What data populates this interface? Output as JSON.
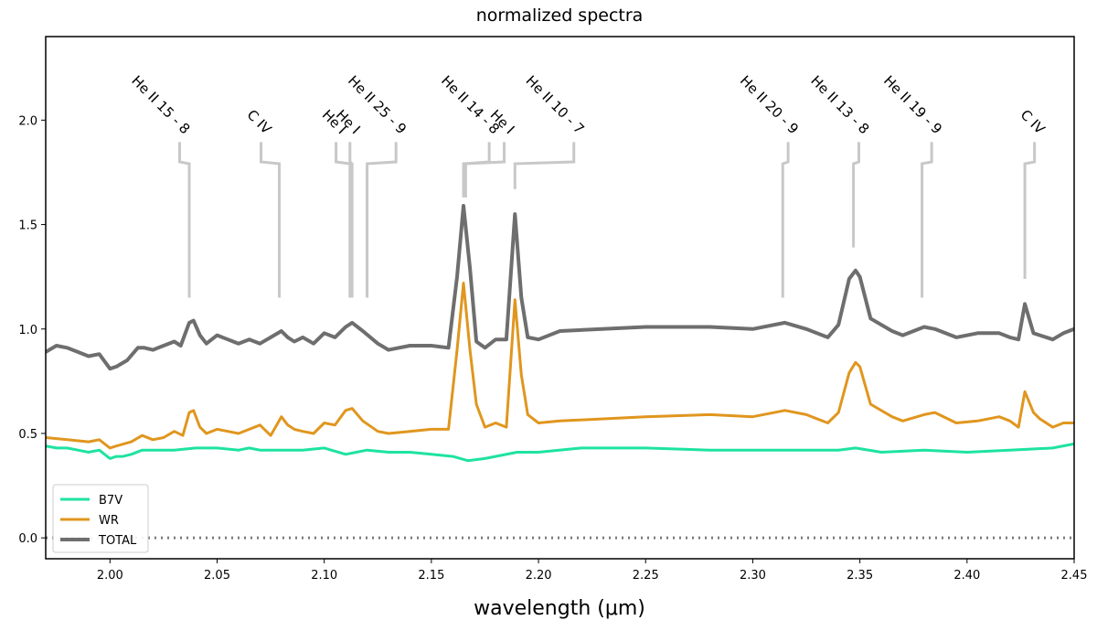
{
  "chart_data": {
    "type": "line",
    "title": "normalized spectra",
    "xlabel": "wavelength (μm)",
    "ylabel": "",
    "xlim": [
      1.97,
      2.45
    ],
    "ylim": [
      -0.1,
      2.4
    ],
    "xticks": [
      2.0,
      2.05,
      2.1,
      2.15,
      2.2,
      2.25,
      2.3,
      2.35,
      2.4,
      2.45
    ],
    "xtick_labels": [
      "2.00",
      "2.05",
      "2.10",
      "2.15",
      "2.20",
      "2.25",
      "2.30",
      "2.35",
      "2.40",
      "2.45"
    ],
    "yticks": [
      0.0,
      0.5,
      1.0,
      1.5,
      2.0
    ],
    "ytick_labels": [
      "0.0",
      "0.5",
      "1.0",
      "1.5",
      "2.0"
    ],
    "grid": false,
    "legend_position": "lower-left",
    "zero_line": {
      "y": 0.0,
      "style": "dotted",
      "color": "#7a7a7a"
    },
    "series": [
      {
        "name": "B7V",
        "color": "#1ee3a0",
        "x": [
          1.97,
          1.975,
          1.98,
          1.985,
          1.99,
          1.995,
          2.0,
          2.003,
          2.006,
          2.01,
          2.015,
          2.02,
          2.03,
          2.04,
          2.05,
          2.06,
          2.065,
          2.07,
          2.08,
          2.09,
          2.1,
          2.11,
          2.115,
          2.12,
          2.13,
          2.14,
          2.15,
          2.16,
          2.167,
          2.175,
          2.19,
          2.2,
          2.22,
          2.25,
          2.28,
          2.3,
          2.32,
          2.34,
          2.348,
          2.36,
          2.38,
          2.4,
          2.42,
          2.44,
          2.45
        ],
        "values": [
          0.44,
          0.43,
          0.43,
          0.42,
          0.41,
          0.42,
          0.38,
          0.39,
          0.39,
          0.4,
          0.42,
          0.42,
          0.42,
          0.43,
          0.43,
          0.42,
          0.43,
          0.42,
          0.42,
          0.42,
          0.43,
          0.4,
          0.41,
          0.42,
          0.41,
          0.41,
          0.4,
          0.39,
          0.37,
          0.38,
          0.41,
          0.41,
          0.43,
          0.43,
          0.42,
          0.42,
          0.42,
          0.42,
          0.43,
          0.41,
          0.42,
          0.41,
          0.42,
          0.43,
          0.45
        ]
      },
      {
        "name": "WR",
        "color": "#e0961e",
        "x": [
          1.97,
          1.98,
          1.99,
          1.995,
          2.0,
          2.003,
          2.01,
          2.015,
          2.02,
          2.025,
          2.03,
          2.034,
          2.037,
          2.039,
          2.042,
          2.045,
          2.05,
          2.055,
          2.06,
          2.065,
          2.07,
          2.075,
          2.08,
          2.083,
          2.086,
          2.09,
          2.095,
          2.1,
          2.105,
          2.11,
          2.113,
          2.118,
          2.125,
          2.13,
          2.14,
          2.15,
          2.158,
          2.162,
          2.165,
          2.168,
          2.171,
          2.175,
          2.18,
          2.185,
          2.189,
          2.192,
          2.195,
          2.2,
          2.21,
          2.25,
          2.28,
          2.3,
          2.315,
          2.325,
          2.335,
          2.34,
          2.345,
          2.348,
          2.35,
          2.355,
          2.365,
          2.37,
          2.38,
          2.385,
          2.395,
          2.405,
          2.415,
          2.42,
          2.424,
          2.427,
          2.431,
          2.434,
          2.44,
          2.445,
          2.45
        ],
        "values": [
          0.48,
          0.47,
          0.46,
          0.47,
          0.43,
          0.44,
          0.46,
          0.49,
          0.47,
          0.48,
          0.51,
          0.49,
          0.6,
          0.61,
          0.53,
          0.5,
          0.52,
          0.51,
          0.5,
          0.52,
          0.54,
          0.49,
          0.58,
          0.54,
          0.52,
          0.51,
          0.5,
          0.55,
          0.54,
          0.61,
          0.62,
          0.56,
          0.51,
          0.5,
          0.51,
          0.52,
          0.52,
          0.9,
          1.22,
          0.9,
          0.64,
          0.53,
          0.55,
          0.53,
          1.14,
          0.78,
          0.59,
          0.55,
          0.56,
          0.58,
          0.59,
          0.58,
          0.61,
          0.59,
          0.55,
          0.6,
          0.79,
          0.84,
          0.82,
          0.64,
          0.58,
          0.56,
          0.59,
          0.6,
          0.55,
          0.56,
          0.58,
          0.56,
          0.53,
          0.7,
          0.6,
          0.57,
          0.53,
          0.55,
          0.55
        ]
      },
      {
        "name": "TOTAL",
        "color": "#6e6e6e",
        "x": [
          1.97,
          1.975,
          1.98,
          1.985,
          1.99,
          1.995,
          2.0,
          2.003,
          2.008,
          2.013,
          2.016,
          2.02,
          2.025,
          2.03,
          2.033,
          2.037,
          2.039,
          2.042,
          2.045,
          2.05,
          2.055,
          2.06,
          2.065,
          2.07,
          2.075,
          2.08,
          2.083,
          2.086,
          2.09,
          2.095,
          2.1,
          2.105,
          2.11,
          2.113,
          2.118,
          2.125,
          2.13,
          2.14,
          2.15,
          2.158,
          2.162,
          2.165,
          2.168,
          2.171,
          2.175,
          2.18,
          2.185,
          2.189,
          2.192,
          2.195,
          2.2,
          2.21,
          2.25,
          2.28,
          2.3,
          2.315,
          2.325,
          2.335,
          2.34,
          2.345,
          2.348,
          2.35,
          2.355,
          2.365,
          2.37,
          2.38,
          2.385,
          2.395,
          2.405,
          2.415,
          2.42,
          2.424,
          2.427,
          2.431,
          2.434,
          2.44,
          2.445,
          2.45
        ],
        "values": [
          0.89,
          0.92,
          0.91,
          0.89,
          0.87,
          0.88,
          0.81,
          0.82,
          0.85,
          0.91,
          0.91,
          0.9,
          0.92,
          0.94,
          0.92,
          1.03,
          1.04,
          0.97,
          0.93,
          0.97,
          0.95,
          0.93,
          0.95,
          0.93,
          0.96,
          0.99,
          0.96,
          0.94,
          0.96,
          0.93,
          0.98,
          0.96,
          1.01,
          1.03,
          0.99,
          0.93,
          0.9,
          0.92,
          0.92,
          0.91,
          1.25,
          1.59,
          1.29,
          0.94,
          0.91,
          0.95,
          0.95,
          1.55,
          1.15,
          0.96,
          0.95,
          0.99,
          1.01,
          1.01,
          1.0,
          1.03,
          1.0,
          0.96,
          1.02,
          1.24,
          1.28,
          1.25,
          1.05,
          0.99,
          0.97,
          1.01,
          1.0,
          0.96,
          0.98,
          0.98,
          0.96,
          0.95,
          1.12,
          0.98,
          0.97,
          0.95,
          0.98,
          1.0
        ]
      }
    ],
    "line_labels": [
      {
        "label": "He II 15 - 8",
        "x": 2.037,
        "text_x": 2.0325
      },
      {
        "label": "C IV",
        "x": 2.079,
        "text_x": 2.0705
      },
      {
        "label": "He I",
        "x": 2.112,
        "text_x": 2.1055
      },
      {
        "label": "He I",
        "x": 2.113,
        "text_x": 2.112
      },
      {
        "label": "He II 25 - 9",
        "x": 2.12,
        "text_x": 2.1335
      },
      {
        "label": "He II 14 - 8",
        "x": 2.165,
        "text_x": 2.177
      },
      {
        "label": "He I",
        "x": 2.166,
        "text_x": 2.184
      },
      {
        "label": "He II 10 - 7",
        "x": 2.189,
        "text_x": 2.2165
      },
      {
        "label": "He II 20 - 9",
        "x": 2.314,
        "text_x": 2.3165
      },
      {
        "label": "He II 13 - 8",
        "x": 2.347,
        "text_x": 2.3495
      },
      {
        "label": "He II 19 - 9",
        "x": 2.379,
        "text_x": 2.3835
      },
      {
        "label": "C IV",
        "x": 2.427,
        "text_x": 2.4315
      }
    ],
    "line_label_marker_bottoms": [
      1.15,
      1.15,
      1.15,
      1.15,
      1.15,
      1.63,
      1.63,
      1.67,
      1.15,
      1.39,
      1.15,
      1.24
    ]
  }
}
